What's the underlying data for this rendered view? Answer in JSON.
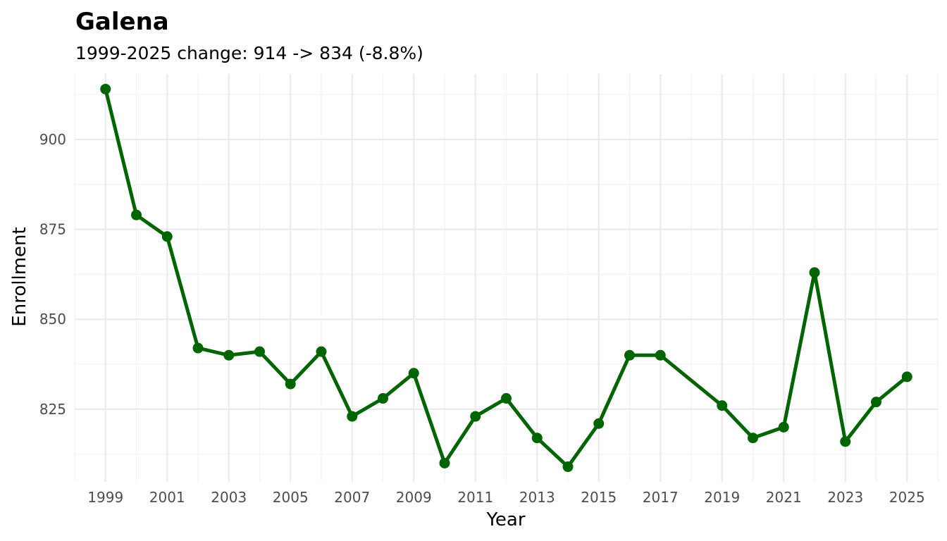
{
  "chart_data": {
    "type": "line",
    "title": "Galena",
    "subtitle": "1999-2025 change: 914 -> 834 (-8.8%)",
    "xlabel": "Year",
    "ylabel": "Enrollment",
    "xlim": [
      1998,
      2026
    ],
    "ylim": [
      804.8,
      918.2
    ],
    "x_ticks": [
      1999,
      2001,
      2003,
      2005,
      2007,
      2009,
      2011,
      2013,
      2015,
      2017,
      2019,
      2021,
      2023,
      2025
    ],
    "y_ticks": [
      825,
      850,
      875,
      900
    ],
    "grid": true,
    "line_color": "#006400",
    "series": [
      {
        "x": [
          1999,
          2000,
          2001,
          2002,
          2003,
          2004,
          2005,
          2006,
          2007,
          2008,
          2009,
          2010,
          2011,
          2012,
          2013,
          2014,
          2015,
          2016,
          2017,
          2019,
          2020,
          2021,
          2022,
          2023,
          2024,
          2025
        ],
        "values": [
          914,
          879,
          873,
          842,
          840,
          841,
          832,
          841,
          823,
          828,
          835,
          810,
          823,
          828,
          817,
          809,
          821,
          840,
          840,
          826,
          817,
          820,
          863,
          816,
          827,
          834
        ]
      }
    ]
  }
}
